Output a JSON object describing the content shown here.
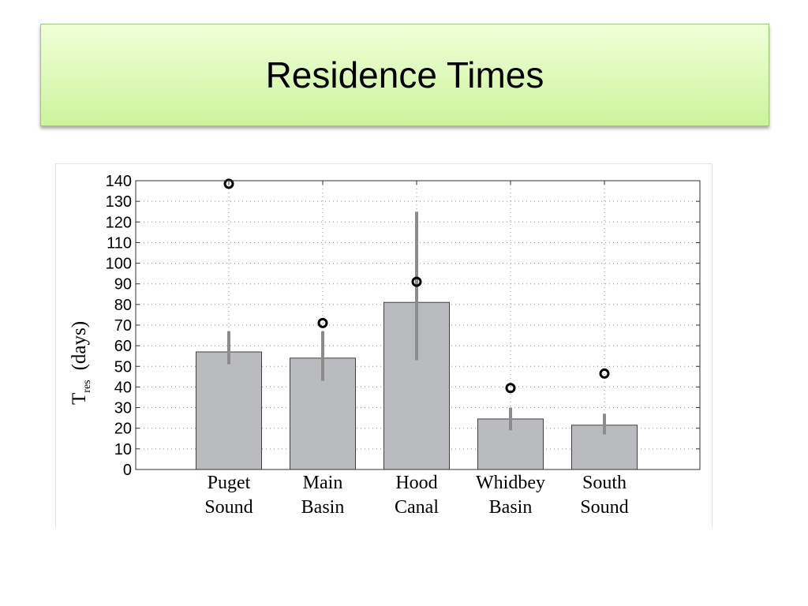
{
  "slide": {
    "title": "Residence Times"
  },
  "chart_data": {
    "type": "bar",
    "categories": [
      [
        "Puget",
        "Sound"
      ],
      [
        "Main",
        "Basin"
      ],
      [
        "Hood",
        "Canal"
      ],
      [
        "Whidbey",
        "Basin"
      ],
      [
        "South",
        "Sound"
      ]
    ],
    "values": [
      57,
      54,
      81,
      24.5,
      21.5
    ],
    "error_bars": [
      [
        51,
        67
      ],
      [
        43,
        67
      ],
      [
        53,
        125
      ],
      [
        19,
        30
      ],
      [
        17,
        27
      ]
    ],
    "markers": [
      138.5,
      71,
      91,
      39.5,
      46.5
    ],
    "ylabel_main": "T",
    "ylabel_sub": "res",
    "ylabel_unit": "(days)",
    "ylim": [
      0,
      140
    ],
    "yticks": [
      0,
      10,
      20,
      30,
      40,
      50,
      60,
      70,
      80,
      90,
      100,
      110,
      120,
      130,
      140
    ],
    "grid": true,
    "colors": {
      "bar_fill": "#babbbf",
      "bar_edge": "#404040",
      "error_bar": "#8c8c8c",
      "marker": "#000000",
      "grid": "#909090"
    }
  }
}
